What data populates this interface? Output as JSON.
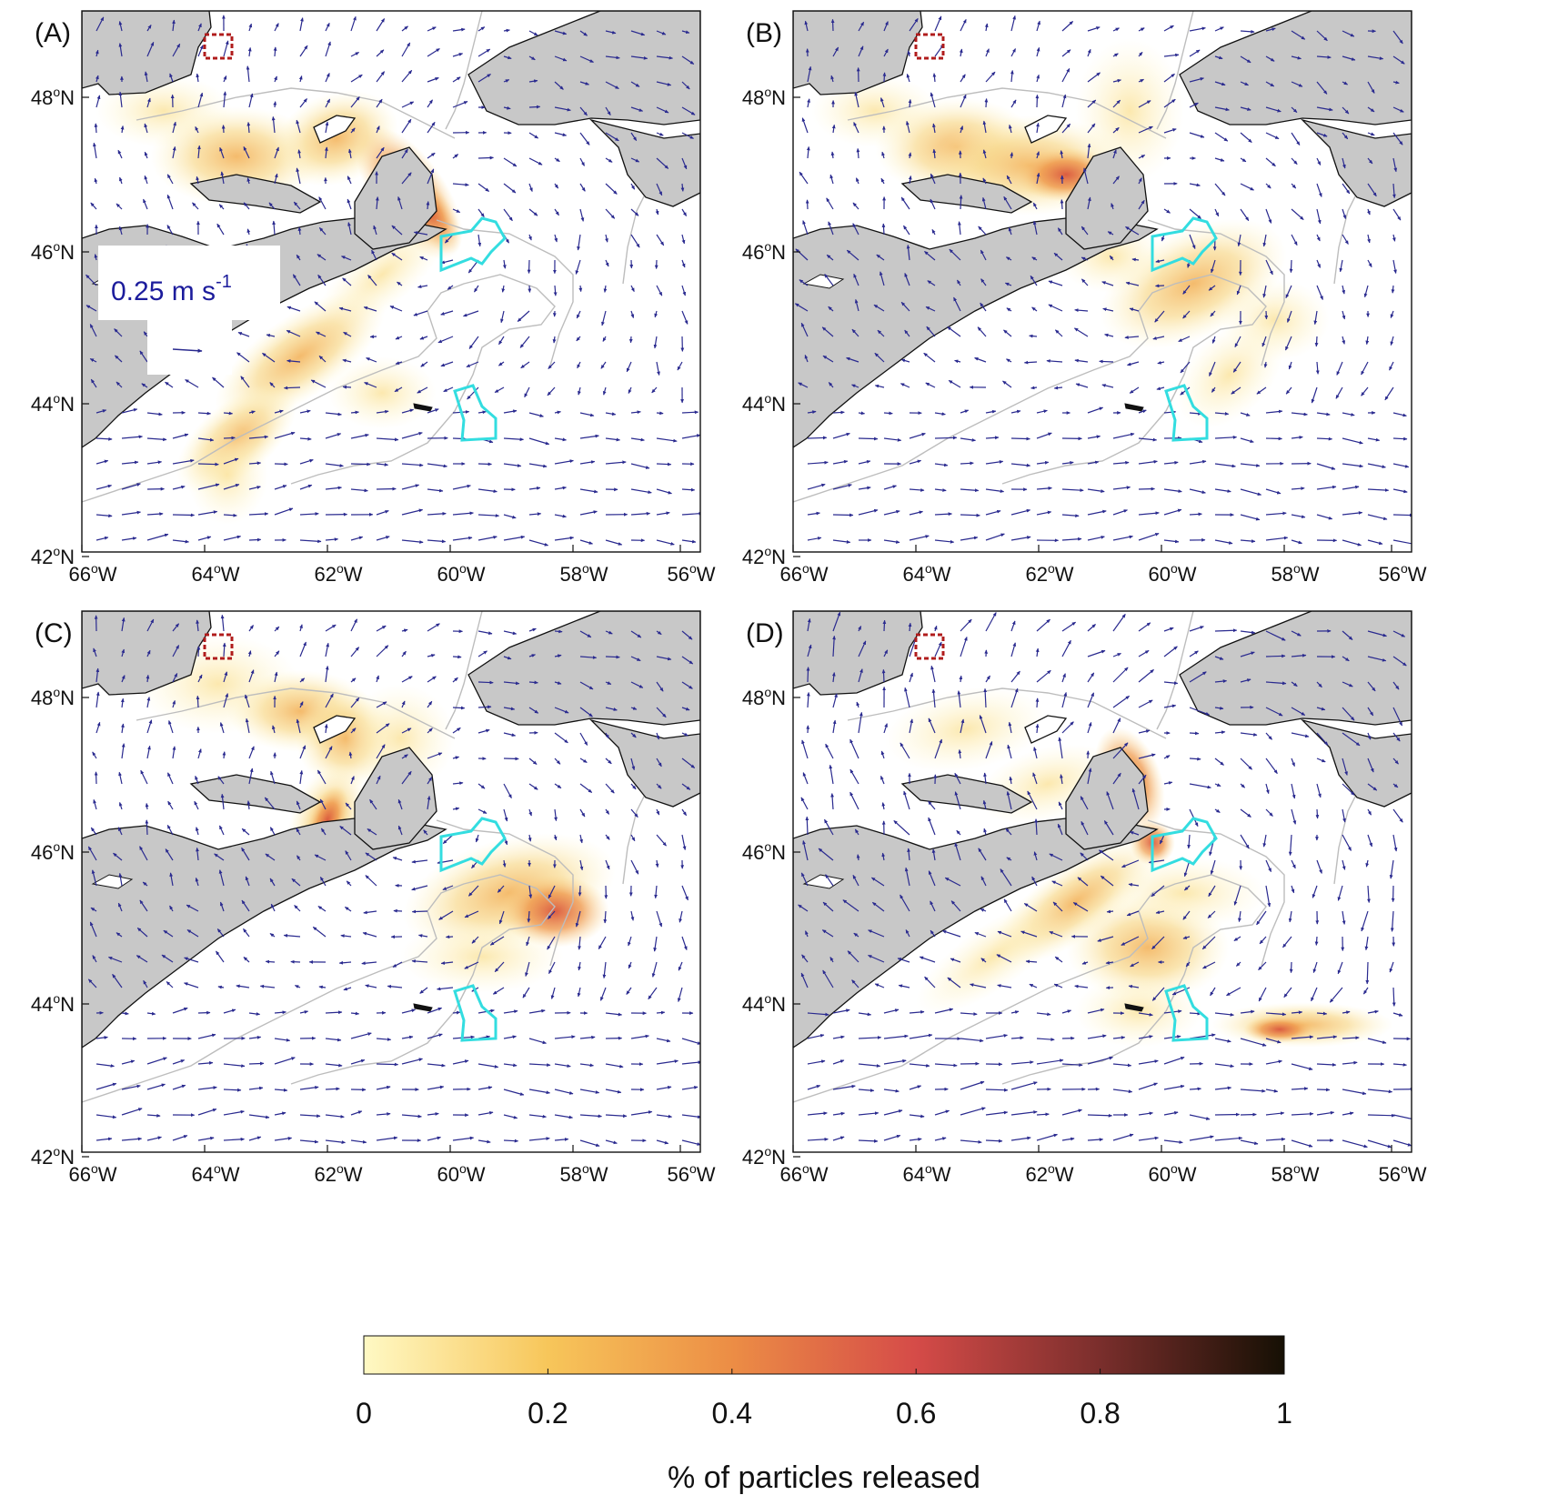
{
  "panels": [
    {
      "id": "A",
      "label": "(A)"
    },
    {
      "id": "B",
      "label": "(B)"
    },
    {
      "id": "C",
      "label": "(C)"
    },
    {
      "id": "D",
      "label": "(D)"
    }
  ],
  "axes": {
    "lat_labels": [
      "48",
      "46",
      "44",
      "42"
    ],
    "lat_suffix": "N",
    "lon_labels": [
      "66",
      "64",
      "62",
      "60",
      "58",
      "56"
    ],
    "lon_suffix": "W",
    "degree_mark": "o"
  },
  "scale_vector": {
    "value_text": "0.25 m s",
    "exponent": "-1"
  },
  "colorbar": {
    "title": "% of particles released",
    "ticks": [
      "0",
      "0.2",
      "0.4",
      "0.6",
      "0.8",
      "1"
    ],
    "colors": [
      "#fff9c4",
      "#f7c65a",
      "#ec8d45",
      "#d54b48",
      "#7a2e2c",
      "#161004"
    ]
  },
  "colors": {
    "land": "#c8c8c8",
    "coast": "#111111",
    "isobath": "#bdbdbd",
    "current_arrows": "#2a2a8f",
    "protected_area": "#33dde0",
    "release_site": "#b01c1c"
  },
  "icons": {
    "current_vector": "arrow-icon",
    "release_site": "dashed-box-icon",
    "protected_area": "polygon-outline-icon"
  }
}
